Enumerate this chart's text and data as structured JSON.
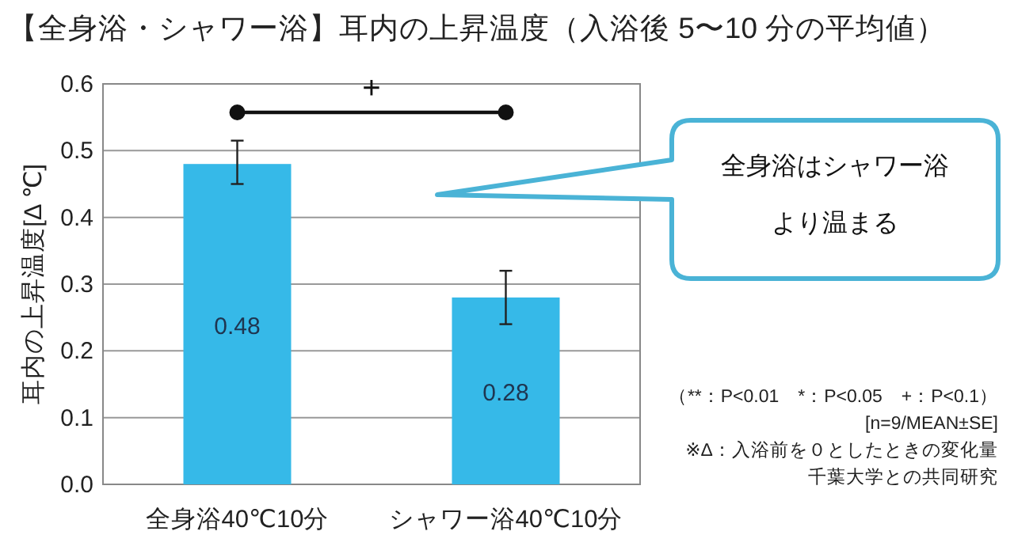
{
  "chart_data": {
    "type": "bar",
    "title": "【全身浴・シャワー浴】耳内の上昇温度（入浴後 5〜10 分の平均値）",
    "ylabel": "耳内の上昇温度[Δ ℃]",
    "categories": [
      "全身浴40℃10分",
      "シャワー浴40℃10分"
    ],
    "values": [
      0.48,
      0.28
    ],
    "errors": [
      [
        0.45,
        0.515
      ],
      [
        0.24,
        0.32
      ]
    ],
    "color": "#36b9e8",
    "data_labels": true,
    "grid": "y",
    "ylim": [
      0,
      0.6
    ],
    "yticks": [
      {
        "value": 0,
        "label": "0.0"
      },
      0.1,
      0.2,
      0.3,
      0.4,
      0.5,
      0.6
    ],
    "annotations": [
      "+",
      "全身浴はシャワー浴",
      "より温まる",
      "（**：P<0.01　*：P<0.05　+：P<0.1）",
      "[n=9/MEAN±SE]",
      "※Δ：入浴前を０としたときの変化量",
      "千葉大学との共同研究"
    ]
  }
}
